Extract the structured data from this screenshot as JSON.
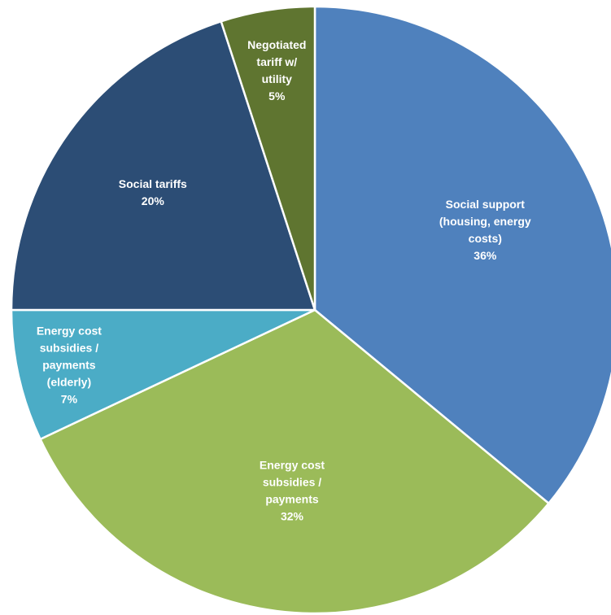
{
  "chart_data": {
    "type": "pie",
    "title": "",
    "start_angle_deg": 0,
    "direction": "clockwise",
    "legend": "none",
    "data_labels": "inside",
    "slices": [
      {
        "label_lines": [
          "Social support",
          "(housing, energy",
          "costs)"
        ],
        "percent_label": "36%",
        "value": 36,
        "color": "#4F81BD"
      },
      {
        "label_lines": [
          "Energy cost",
          "subsidies /",
          "payments"
        ],
        "percent_label": "32%",
        "value": 32,
        "color": "#9BBB59"
      },
      {
        "label_lines": [
          "Energy cost",
          "subsidies /",
          "payments",
          "(elderly)"
        ],
        "percent_label": "7%",
        "value": 7,
        "color": "#4BACC6"
      },
      {
        "label_lines": [
          "Social tariffs"
        ],
        "percent_label": "20%",
        "value": 20,
        "color": "#2C4D75"
      },
      {
        "label_lines": [
          "Negotiated",
          "tariff w/",
          "utility"
        ],
        "percent_label": "5%",
        "value": 5,
        "color": "#5F7530"
      }
    ]
  }
}
